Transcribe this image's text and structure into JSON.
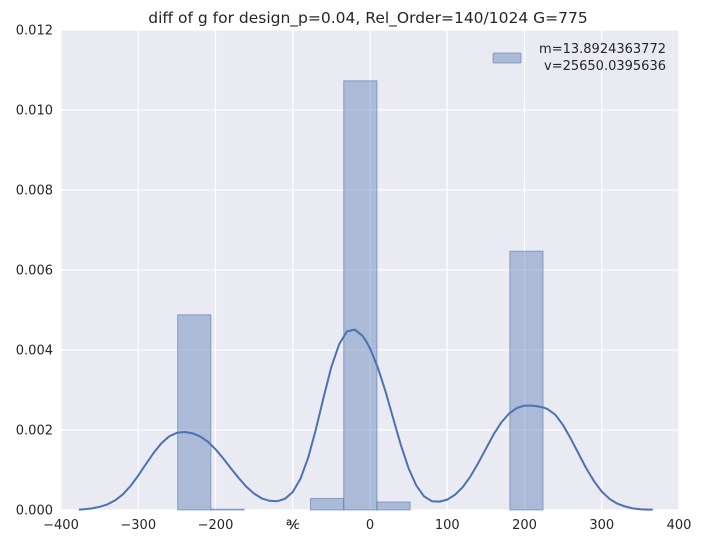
{
  "chart_data": {
    "type": "bar",
    "title": "diff of g for design_p=0.04, Rel_Order=140/1024 G=775",
    "xlabel": "",
    "ylabel": "",
    "xlim": [
      -400,
      400
    ],
    "ylim": [
      0,
      0.012
    ],
    "x_ticks": [
      -400,
      -300,
      -200,
      -100,
      0,
      100,
      200,
      300,
      400
    ],
    "x_tick_labels": [
      "−400",
      "−300",
      "−200",
      "℀",
      "0",
      "100",
      "200",
      "300",
      "400"
    ],
    "y_ticks": [
      0,
      0.002,
      0.004,
      0.006,
      0.008,
      0.01,
      0.012
    ],
    "y_tick_labels": [
      "0.000",
      "0.002",
      "0.004",
      "0.006",
      "0.008",
      "0.010",
      "0.012"
    ],
    "grid": true,
    "legend_position": "top-right",
    "legend": {
      "line1": "m=13.8924363772",
      "line2": "v=25650.0395636"
    },
    "histogram": {
      "bin_edges": [
        -249,
        -206,
        -163,
        -120,
        -77,
        -34,
        9,
        52,
        95,
        138,
        181,
        224
      ],
      "densities": [
        0.00488,
        2e-05,
        0,
        0,
        0.00029,
        0.01073,
        0.0002,
        0,
        0,
        0,
        0.00647
      ]
    },
    "kde": {
      "x": [
        -377,
        -370,
        -360,
        -350,
        -340,
        -330,
        -320,
        -310,
        -300,
        -290,
        -280,
        -270,
        -260,
        -250,
        -240,
        -230,
        -220,
        -210,
        -200,
        -190,
        -180,
        -170,
        -160,
        -150,
        -140,
        -130,
        -120,
        -110,
        -100,
        -90,
        -80,
        -70,
        -60,
        -50,
        -40,
        -30,
        -20,
        -10,
        -5,
        0,
        10,
        20,
        30,
        40,
        50,
        60,
        70,
        80,
        90,
        100,
        110,
        120,
        130,
        140,
        150,
        160,
        170,
        180,
        190,
        200,
        210,
        220,
        225,
        230,
        240,
        250,
        260,
        270,
        280,
        290,
        300,
        310,
        320,
        330,
        340,
        350,
        360,
        366
      ],
      "y": [
        1e-05,
        2e-05,
        4e-05,
        8e-05,
        0.00014,
        0.00024,
        0.00039,
        0.0006,
        0.00086,
        0.00115,
        0.00143,
        0.00167,
        0.00184,
        0.00193,
        0.00195,
        0.00192,
        0.00184,
        0.00171,
        0.00152,
        0.00129,
        0.00104,
        0.0008,
        0.00058,
        0.00041,
        0.00029,
        0.00023,
        0.00022,
        0.00028,
        0.00045,
        0.00078,
        0.00131,
        0.00202,
        0.00282,
        0.00358,
        0.00414,
        0.00446,
        0.00451,
        0.00436,
        0.00422,
        0.00404,
        0.00357,
        0.00297,
        0.00229,
        0.00162,
        0.00104,
        0.00061,
        0.00034,
        0.00022,
        0.00021,
        0.00026,
        0.00038,
        0.00057,
        0.00084,
        0.00117,
        0.00153,
        0.00189,
        0.00219,
        0.00241,
        0.00255,
        0.00261,
        0.00261,
        0.00258,
        0.00256,
        0.00252,
        0.00238,
        0.00212,
        0.00178,
        0.00141,
        0.00104,
        0.00072,
        0.00046,
        0.00028,
        0.00016,
        9e-05,
        4e-05,
        2e-05,
        1e-05,
        1e-05
      ]
    },
    "colors": {
      "background": "#eaeaf2",
      "grid": "#ffffff",
      "bar_fill": "#4c72b0",
      "kde_line": "#4c72b0"
    }
  }
}
